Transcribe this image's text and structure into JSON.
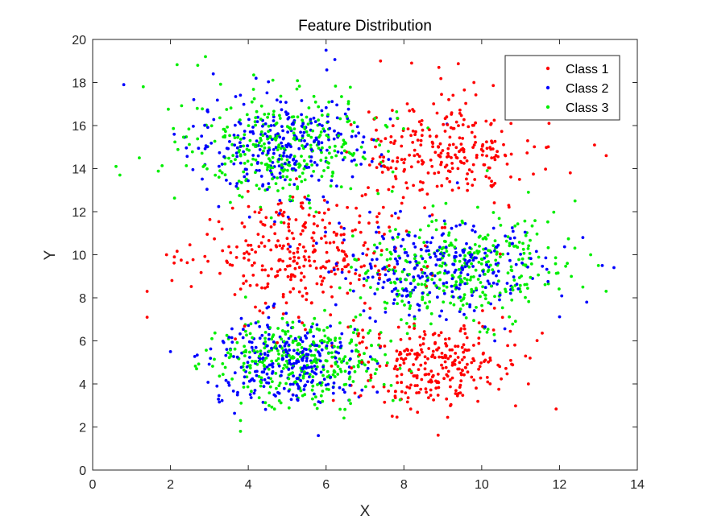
{
  "chart_data": {
    "type": "scatter",
    "title": "Feature Distribution",
    "xlabel": "X",
    "ylabel": "Y",
    "xlim": [
      0,
      14
    ],
    "ylim": [
      0,
      20
    ],
    "xticks": [
      0,
      2,
      4,
      6,
      8,
      10,
      12,
      14
    ],
    "yticks": [
      0,
      2,
      4,
      6,
      8,
      10,
      12,
      14,
      16,
      18,
      20
    ],
    "grid": false,
    "legend_position": "top-right",
    "series": [
      {
        "name": "Class 1",
        "color": "#ff0000",
        "clusters": [
          {
            "cx": 9.0,
            "cy": 14.8,
            "sx": 1.1,
            "sy": 1.3,
            "n": 260
          },
          {
            "cx": 5.2,
            "cy": 10.0,
            "sx": 1.3,
            "sy": 1.3,
            "n": 300
          },
          {
            "cx": 8.8,
            "cy": 5.0,
            "sx": 1.1,
            "sy": 1.0,
            "n": 280
          }
        ],
        "points": [
          [
            8.2,
            18.9
          ],
          [
            8.9,
            18.7
          ],
          [
            9.8,
            18.0
          ],
          [
            7.4,
            19.0
          ],
          [
            13.2,
            14.6
          ],
          [
            12.9,
            15.1
          ],
          [
            1.4,
            8.3
          ],
          [
            1.4,
            7.1
          ],
          [
            1.9,
            10.0
          ],
          [
            2.1,
            9.9
          ],
          [
            7.7,
            2.5
          ]
        ]
      },
      {
        "name": "Class 2",
        "color": "#0000ff",
        "clusters": [
          {
            "cx": 4.9,
            "cy": 15.1,
            "sx": 1.1,
            "sy": 1.2,
            "n": 270
          },
          {
            "cx": 8.9,
            "cy": 9.4,
            "sx": 1.3,
            "sy": 1.1,
            "n": 280
          },
          {
            "cx": 5.0,
            "cy": 5.0,
            "sx": 1.0,
            "sy": 1.0,
            "n": 280
          }
        ],
        "points": [
          [
            0.8,
            17.9
          ],
          [
            6.0,
            19.5
          ],
          [
            13.4,
            9.4
          ],
          [
            13.1,
            9.5
          ],
          [
            12.7,
            7.8
          ],
          [
            12.6,
            10.8
          ],
          [
            5.8,
            1.6
          ],
          [
            2.0,
            5.5
          ],
          [
            3.1,
            18.4
          ],
          [
            4.2,
            18.2
          ]
        ]
      },
      {
        "name": "Class 3",
        "color": "#00ee00",
        "clusters": [
          {
            "cx": 5.0,
            "cy": 15.0,
            "sx": 1.2,
            "sy": 1.2,
            "n": 330
          },
          {
            "cx": 9.4,
            "cy": 9.3,
            "sx": 1.3,
            "sy": 1.2,
            "n": 340
          },
          {
            "cx": 5.3,
            "cy": 5.0,
            "sx": 1.1,
            "sy": 1.0,
            "n": 340
          }
        ],
        "points": [
          [
            0.6,
            14.1
          ],
          [
            0.7,
            13.7
          ],
          [
            1.2,
            14.5
          ],
          [
            1.3,
            17.8
          ],
          [
            2.9,
            19.2
          ],
          [
            2.7,
            18.8
          ],
          [
            3.8,
            1.8
          ],
          [
            12.4,
            12.5
          ],
          [
            12.2,
            9.6
          ],
          [
            12.6,
            8.5
          ],
          [
            11.2,
            12.9
          ],
          [
            13.0,
            9.5
          ],
          [
            12.8,
            10.0
          ],
          [
            3.8,
            2.3
          ]
        ]
      }
    ]
  }
}
